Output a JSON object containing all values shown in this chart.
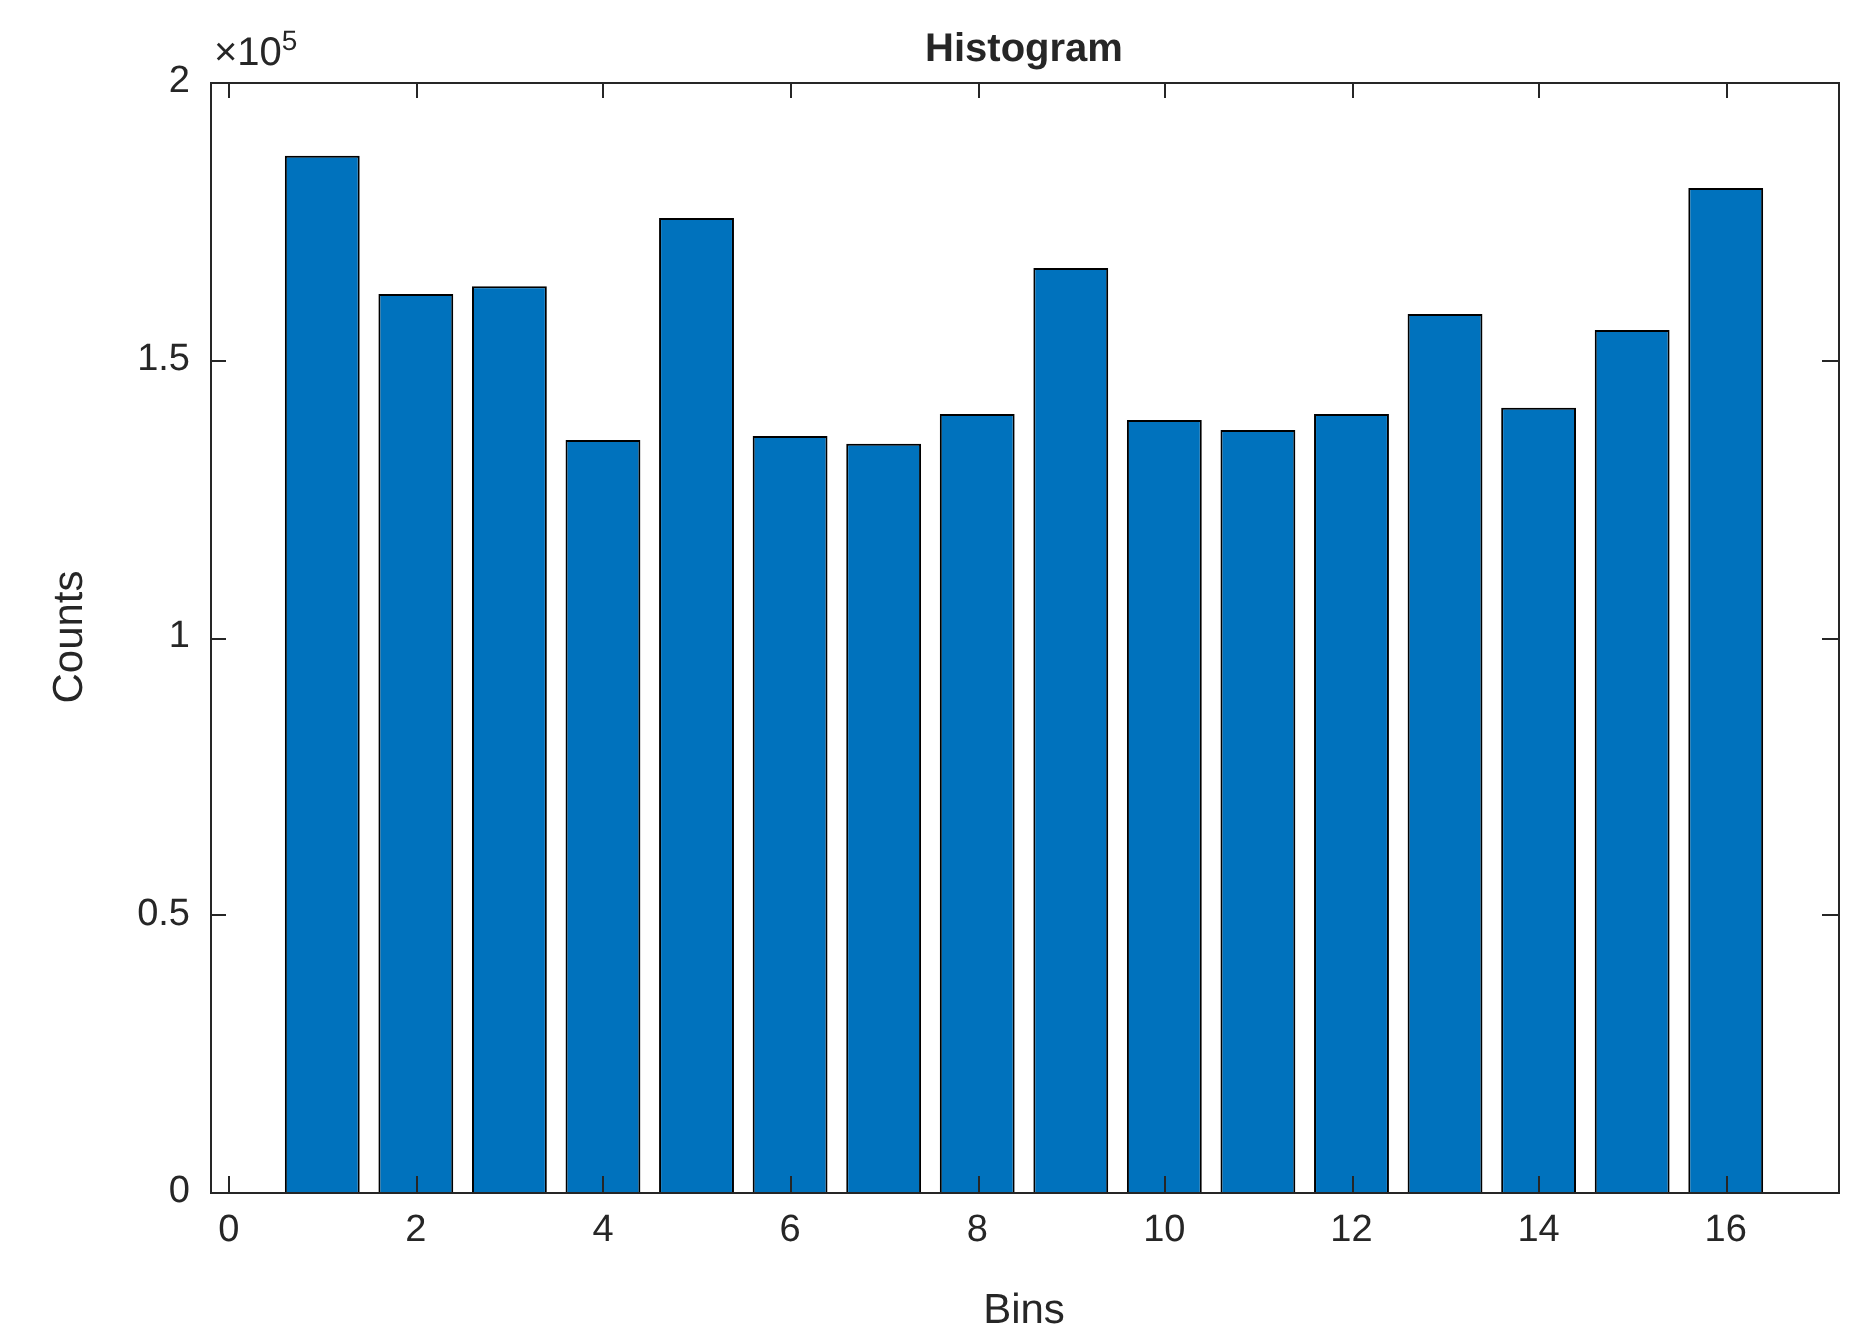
{
  "chart_data": {
    "type": "bar",
    "title": "Histogram",
    "xlabel": "Bins",
    "ylabel": "Counts",
    "x": [
      1,
      2,
      3,
      4,
      5,
      6,
      7,
      8,
      9,
      10,
      11,
      12,
      13,
      14,
      15,
      16
    ],
    "values": [
      1.867,
      1.618,
      1.632,
      1.355,
      1.755,
      1.362,
      1.348,
      1.402,
      1.665,
      1.391,
      1.373,
      1.402,
      1.582,
      1.413,
      1.553,
      1.809
    ],
    "color": "#0072bd",
    "xlim": [
      -0.2,
      17.2
    ],
    "xticks": [
      0,
      2,
      4,
      6,
      8,
      10,
      12,
      14,
      16
    ],
    "ylim": [
      0,
      2
    ],
    "yticks": [
      0,
      0.5,
      1,
      1.5,
      2
    ],
    "annotations": [
      "×10$^{5}$"
    ],
    "grid": false,
    "legend": false
  }
}
